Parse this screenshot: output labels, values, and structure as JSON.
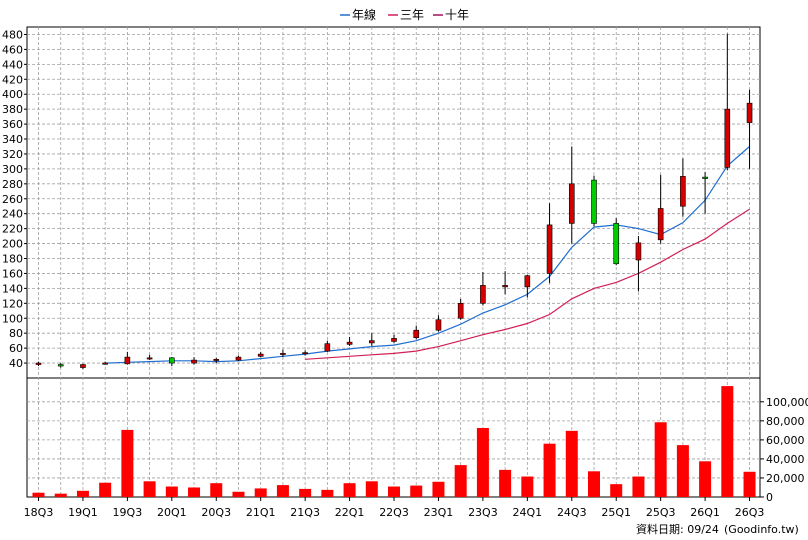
{
  "legend": [
    {
      "label": "年線",
      "color": "#1f6fd0"
    },
    {
      "label": "三年",
      "color": "#d21f55"
    },
    {
      "label": "十年",
      "color": "#a0105a"
    }
  ],
  "footer": {
    "date_label": "資料日期: 09/24",
    "source": "(Goodinfo.tw)"
  },
  "colors": {
    "up": "#d40000",
    "down": "#00cc00",
    "volume": "#ff0000",
    "grid": "#a0a0a0"
  },
  "chart_data": {
    "type": "candlestick",
    "price_axis": {
      "ylim": [
        20,
        490
      ],
      "ticks": [
        40,
        60,
        80,
        100,
        120,
        140,
        160,
        180,
        200,
        220,
        240,
        260,
        280,
        300,
        320,
        340,
        360,
        380,
        400,
        420,
        440,
        460,
        480
      ]
    },
    "volume_axis": {
      "ylim": [
        0,
        125000
      ],
      "ticks": [
        0,
        20000,
        40000,
        60000,
        80000,
        100000
      ],
      "tick_labels": [
        "0",
        "20,000",
        "40,000",
        "60,000",
        "80,000",
        "100,000"
      ]
    },
    "x_labels": [
      "18Q3",
      "19Q1",
      "19Q3",
      "20Q1",
      "20Q3",
      "21Q1",
      "21Q3",
      "22Q1",
      "22Q3",
      "23Q1",
      "23Q3",
      "24Q1",
      "24Q3",
      "25Q1",
      "25Q3",
      "26Q1",
      "26Q3"
    ],
    "periods": [
      "18Q3",
      "18Q4",
      "19Q1",
      "19Q2",
      "19Q3",
      "19Q4",
      "20Q1",
      "20Q2",
      "20Q3",
      "20Q4",
      "21Q1",
      "21Q2",
      "21Q3",
      "21Q4",
      "22Q1",
      "22Q2",
      "22Q3",
      "22Q4",
      "23Q1",
      "23Q2",
      "23Q3",
      "23Q4",
      "24Q1",
      "24Q2",
      "24Q3",
      "24Q4",
      "25Q1",
      "25Q2",
      "25Q3",
      "25Q4",
      "26Q1",
      "26Q2",
      "26Q3"
    ],
    "ohlc": [
      [
        38,
        42,
        36,
        40
      ],
      [
        38,
        40,
        34,
        36
      ],
      [
        34,
        39,
        32,
        38
      ],
      [
        40,
        42,
        38,
        40
      ],
      [
        39,
        55,
        38,
        48
      ],
      [
        47,
        51,
        44,
        47
      ],
      [
        47,
        48,
        36,
        40
      ],
      [
        40,
        48,
        38,
        44
      ],
      [
        44,
        47,
        40,
        45
      ],
      [
        44,
        50,
        43,
        48
      ],
      [
        49,
        55,
        48,
        52
      ],
      [
        52,
        58,
        48,
        53
      ],
      [
        53,
        57,
        50,
        54
      ],
      [
        56,
        70,
        55,
        66
      ],
      [
        65,
        75,
        63,
        68
      ],
      [
        67,
        80,
        63,
        70
      ],
      [
        69,
        78,
        67,
        73
      ],
      [
        74,
        90,
        72,
        84
      ],
      [
        84,
        104,
        82,
        98
      ],
      [
        100,
        126,
        98,
        120
      ],
      [
        120,
        162,
        117,
        144
      ],
      [
        142,
        163,
        132,
        144
      ],
      [
        142,
        158,
        128,
        157
      ],
      [
        160,
        254,
        147,
        225
      ],
      [
        227,
        330,
        200,
        280
      ],
      [
        285,
        291,
        223,
        227
      ],
      [
        227,
        234,
        171,
        173
      ],
      [
        178,
        210,
        136,
        201
      ],
      [
        205,
        292,
        200,
        247
      ],
      [
        250,
        314,
        236,
        290
      ],
      [
        289,
        296,
        240,
        287
      ],
      [
        302,
        481,
        298,
        380
      ],
      [
        362,
        406,
        300,
        388
      ]
    ],
    "series": [
      {
        "name": "年線",
        "values": [
          null,
          null,
          null,
          40,
          41,
          42,
          43,
          43,
          42,
          43,
          46,
          49,
          52,
          56,
          59,
          62,
          64,
          70,
          80,
          92,
          107,
          118,
          132,
          156,
          195,
          222,
          225,
          220,
          212,
          228,
          258,
          304,
          330
        ]
      },
      {
        "name": "三年",
        "values": [
          null,
          null,
          null,
          null,
          null,
          null,
          null,
          null,
          null,
          null,
          null,
          null,
          45,
          47,
          49,
          51,
          53,
          56,
          62,
          70,
          78,
          85,
          93,
          105,
          126,
          140,
          148,
          160,
          175,
          192,
          206,
          227,
          246
        ]
      }
    ],
    "volume": [
      4500,
      3500,
      6500,
      15000,
      70500,
      16500,
      11000,
      10000,
      14500,
      5500,
      9000,
      12500,
      8500,
      7500,
      14500,
      16500,
      11000,
      12000,
      16000,
      33500,
      72500,
      28500,
      21500,
      56000,
      69500,
      27000,
      13500,
      21500,
      78500,
      54500,
      37500,
      116500,
      26500
    ]
  }
}
